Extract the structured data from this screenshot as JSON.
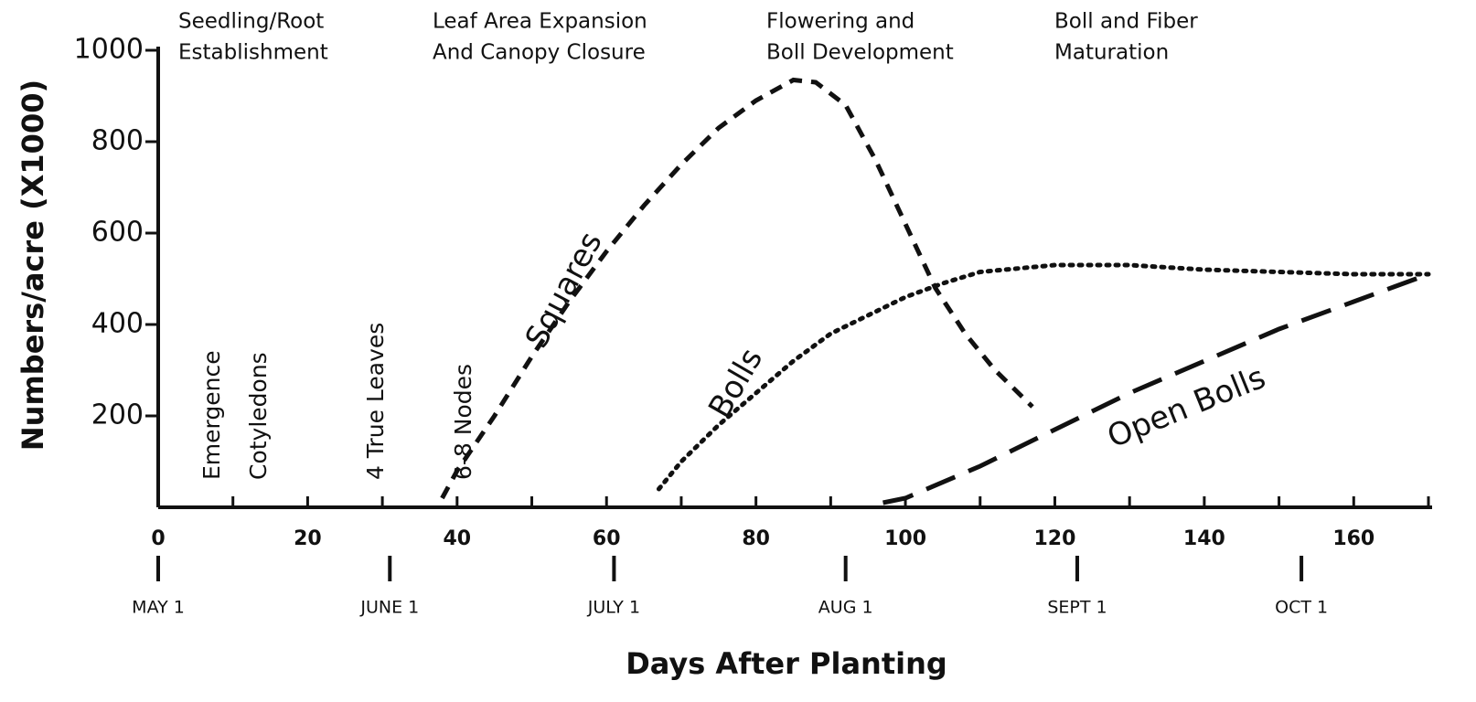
{
  "chart_data": {
    "type": "line",
    "y_label": "Numbers/acre (X1000)",
    "x_label": "Days After Planting",
    "xlim": [
      0,
      170
    ],
    "ylim": [
      0,
      1000
    ],
    "xticks": [
      0,
      20,
      40,
      60,
      80,
      100,
      120,
      140,
      160
    ],
    "xminor": [
      10,
      20,
      30,
      40,
      50,
      60,
      70,
      80,
      90,
      100,
      110,
      120,
      130,
      140,
      150,
      160,
      170
    ],
    "yticks": [
      200,
      400,
      600,
      800,
      1000
    ],
    "date_ticks": [
      {
        "value": 0,
        "label": "MAY 1"
      },
      {
        "value": 31,
        "label": "JUNE 1"
      },
      {
        "value": 61,
        "label": "JULY 1"
      },
      {
        "value": 92,
        "label": "AUG 1"
      },
      {
        "value": 123,
        "label": "SEPT 1"
      },
      {
        "value": 153,
        "label": "OCT 1"
      }
    ],
    "stages": [
      [
        "Seedling/Root",
        "Establishment"
      ],
      [
        "Leaf Area Expansion",
        "And Canopy Closure"
      ],
      [
        "Flowering and",
        "Boll Development"
      ],
      [
        "Boll and Fiber",
        "Maturation"
      ]
    ],
    "events": [
      "Emergence",
      "Cotyledons",
      "4 True Leaves",
      "6-8 Nodes"
    ],
    "series": [
      {
        "name": "Squares",
        "color": "#111111",
        "style": "dashed",
        "x": [
          38,
          40,
          45,
          50,
          55,
          60,
          65,
          70,
          75,
          80,
          85,
          88,
          92,
          96,
          100,
          104,
          108,
          112,
          117
        ],
        "values": [
          20,
          80,
          200,
          330,
          450,
          560,
          660,
          750,
          830,
          890,
          935,
          930,
          880,
          760,
          620,
          480,
          380,
          300,
          220
        ]
      },
      {
        "name": "Bolls",
        "color": "#111111",
        "style": "dotted",
        "x": [
          67,
          70,
          75,
          80,
          85,
          90,
          95,
          100,
          105,
          110,
          120,
          130,
          140,
          150,
          160,
          170
        ],
        "values": [
          40,
          100,
          180,
          250,
          320,
          380,
          420,
          460,
          490,
          515,
          530,
          530,
          520,
          515,
          510,
          510
        ]
      },
      {
        "name": "Open Bolls",
        "color": "#111111",
        "style": "long-dashed",
        "x": [
          97,
          100,
          110,
          120,
          130,
          140,
          150,
          160,
          170
        ],
        "values": [
          10,
          20,
          90,
          170,
          250,
          320,
          390,
          450,
          510
        ]
      }
    ]
  }
}
